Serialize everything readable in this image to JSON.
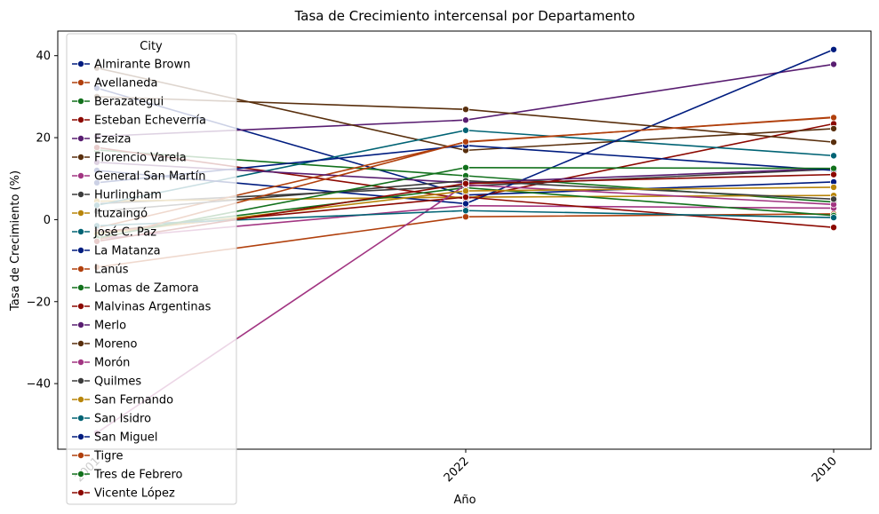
{
  "chart_data": {
    "type": "line",
    "title": "Tasa de Crecimiento intercensal por Departamento",
    "xlabel": "Año",
    "ylabel": "Tasa de Crecimiento (%)",
    "categories": [
      "2001",
      "2022",
      "2010"
    ],
    "ylim": [
      -56,
      46
    ],
    "yticks": [
      -40,
      -20,
      0,
      20,
      40
    ],
    "legend": {
      "title": "City",
      "placement": "top-left"
    },
    "series": [
      {
        "name": "Almirante Brown",
        "color": "#001c7f",
        "values": [
          32.1,
          6.0,
          9.2
        ]
      },
      {
        "name": "Avellaneda",
        "color": "#b1400d",
        "values": [
          -11.6,
          0.7,
          1.4
        ]
      },
      {
        "name": "Berazategui",
        "color": "#12711c",
        "values": [
          17.0,
          10.7,
          4.3
        ]
      },
      {
        "name": "Esteban Echeverría",
        "color": "#8c0800",
        "values": [
          17.6,
          5.1,
          23.4
        ]
      },
      {
        "name": "Ezeiza",
        "color": "#591e71",
        "values": [
          20.3,
          24.3,
          37.9
        ]
      },
      {
        "name": "Florencio Varela",
        "color": "#592f0d",
        "values": [
          37.0,
          16.9,
          22.2
        ]
      },
      {
        "name": "General San Martín",
        "color": "#a23582",
        "values": [
          -4.7,
          3.4,
          2.8
        ]
      },
      {
        "name": "Hurlingham",
        "color": "#3c3c3c",
        "values": [
          3.9,
          8.2,
          12.3
        ]
      },
      {
        "name": "Ituzaingó",
        "color": "#b8850a",
        "values": [
          4.5,
          5.5,
          5.9
        ]
      },
      {
        "name": "José C. Paz",
        "color": "#006374",
        "values": [
          3.5,
          21.8,
          15.6
        ]
      },
      {
        "name": "La Matanza",
        "color": "#001c7f",
        "values": [
          12.0,
          3.9,
          41.5
        ]
      },
      {
        "name": "Lanús",
        "color": "#b1400d",
        "values": [
          -2.0,
          18.9,
          25.0
        ]
      },
      {
        "name": "Lomas de Zamora",
        "color": "#12711c",
        "values": [
          -3.2,
          7.8,
          1.0
        ]
      },
      {
        "name": "Malvinas Argentinas",
        "color": "#8c0800",
        "values": [
          -3.0,
          5.5,
          -1.9
        ]
      },
      {
        "name": "Merlo",
        "color": "#591e71",
        "values": [
          14.0,
          9.0,
          12.5
        ]
      },
      {
        "name": "Moreno",
        "color": "#592f0d",
        "values": [
          30.0,
          26.9,
          18.9
        ]
      },
      {
        "name": "Morón",
        "color": "#a23582",
        "values": [
          -52.0,
          8.5,
          3.7
        ]
      },
      {
        "name": "Quilmes",
        "color": "#3c3c3c",
        "values": [
          2.0,
          9.5,
          5.0
        ]
      },
      {
        "name": "San Fernando",
        "color": "#b8850a",
        "values": [
          -3.5,
          7.0,
          7.9
        ]
      },
      {
        "name": "San Isidro",
        "color": "#006374",
        "values": [
          -1.5,
          2.2,
          0.5
        ]
      },
      {
        "name": "San Miguel",
        "color": "#001c7f",
        "values": [
          9.0,
          18.1,
          12.0
        ]
      },
      {
        "name": "Tigre",
        "color": "#b1400d",
        "values": [
          -5.0,
          19.0,
          24.9
        ]
      },
      {
        "name": "Tres de Febrero",
        "color": "#12711c",
        "values": [
          -4.5,
          12.7,
          12.5
        ]
      },
      {
        "name": "Vicente López",
        "color": "#8c0800",
        "values": [
          -5.3,
          8.8,
          11.0
        ]
      }
    ]
  }
}
